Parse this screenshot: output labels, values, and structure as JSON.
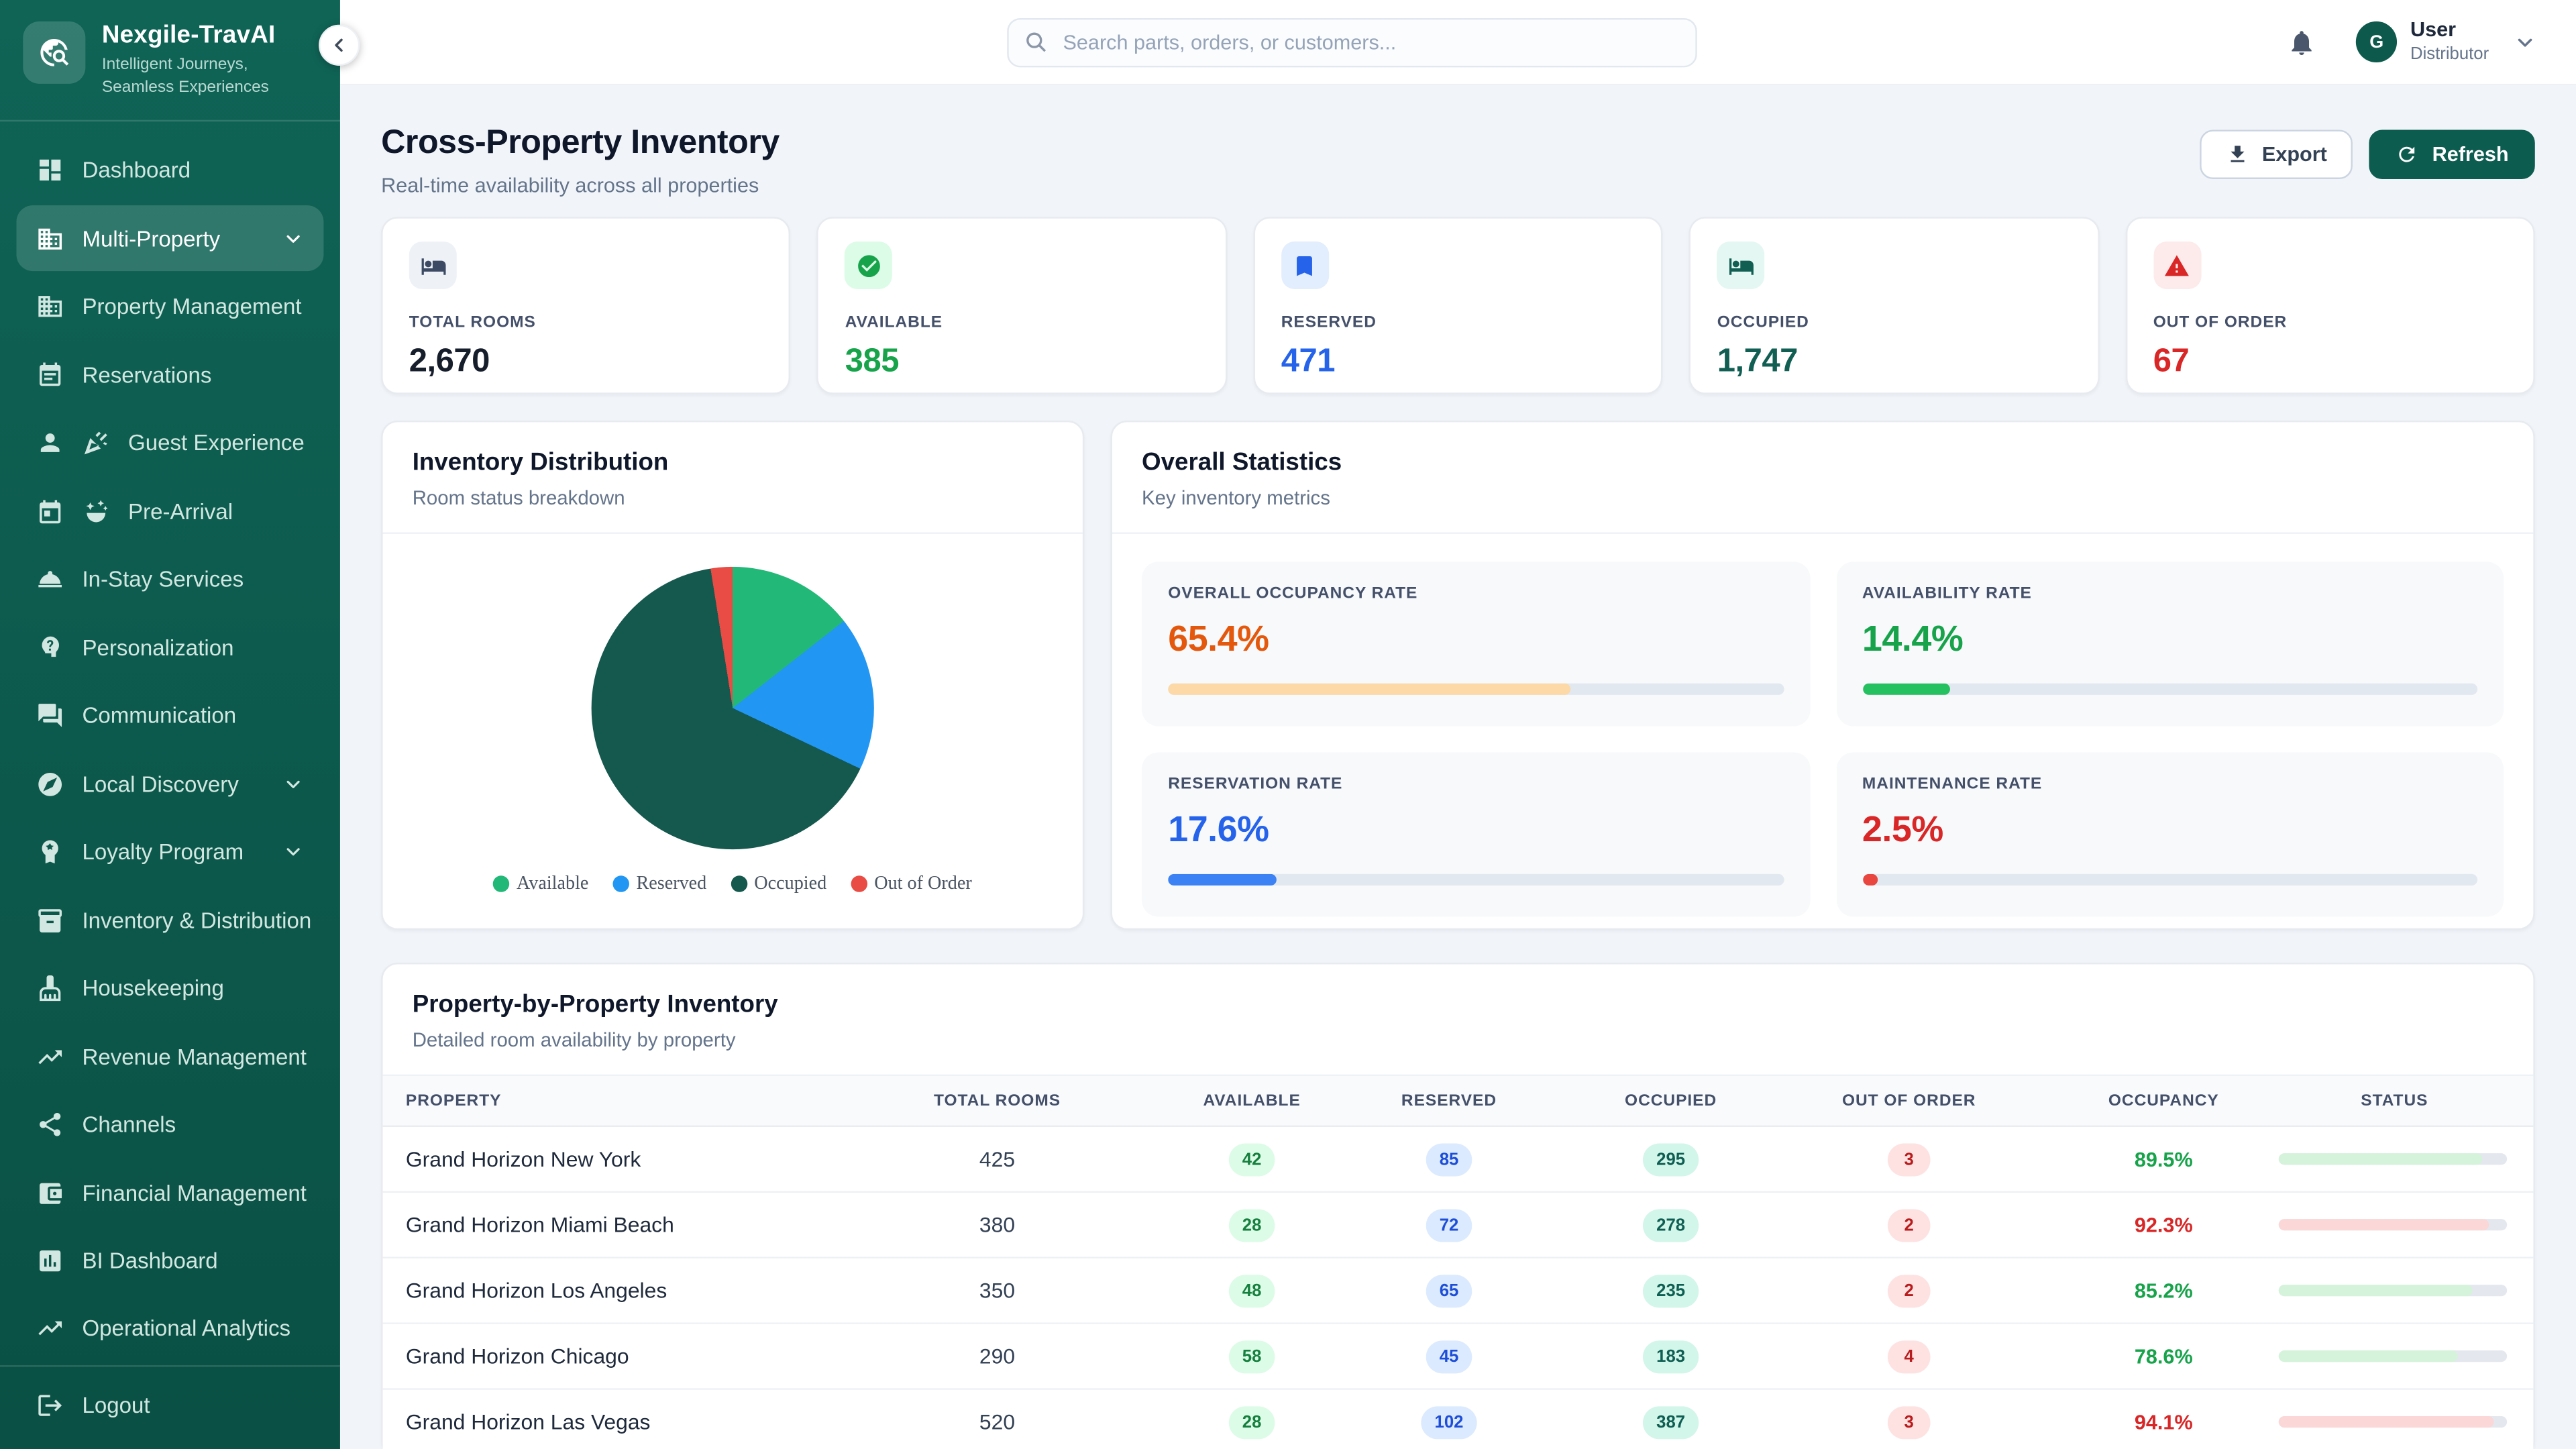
{
  "brand": {
    "name": "Nexgile-TravAI",
    "tagline": "Intelligent Journeys, Seamless Experiences"
  },
  "sidebar": {
    "items": [
      {
        "label": "Dashboard",
        "icon": "dashboard-grid-icon"
      },
      {
        "label": "Multi-Property",
        "icon": "building-icon",
        "active": true,
        "chevron": "down"
      },
      {
        "label": "Property Management",
        "icon": "building-icon"
      },
      {
        "label": "Reservations",
        "icon": "calendar-icon"
      },
      {
        "label": "Guest Experience",
        "icon": "person-icon",
        "extra_icon": "party-popper-icon"
      },
      {
        "label": "Pre-Arrival",
        "icon": "calendar-event-icon",
        "extra_icon": "confetti-icon"
      },
      {
        "label": "In-Stay Services",
        "icon": "room-service-icon"
      },
      {
        "label": "Personalization",
        "icon": "psychology-head-icon"
      },
      {
        "label": "Communication",
        "icon": "chat-icon"
      },
      {
        "label": "Local Discovery",
        "icon": "compass-icon",
        "chevron": "down"
      },
      {
        "label": "Loyalty Program",
        "icon": "loyalty-badge-icon",
        "chevron": "down"
      },
      {
        "label": "Inventory & Distribution",
        "icon": "inventory-box-icon"
      },
      {
        "label": "Housekeeping",
        "icon": "cleaning-icon"
      },
      {
        "label": "Revenue Management",
        "icon": "trending-up-icon"
      },
      {
        "label": "Channels",
        "icon": "share-icon"
      },
      {
        "label": "Financial Management",
        "icon": "wallet-icon",
        "chevron": "down"
      },
      {
        "label": "BI Dashboard",
        "icon": "bar-chart-icon"
      },
      {
        "label": "Operational Analytics",
        "icon": "trending-up-icon"
      }
    ],
    "logout_label": "Logout"
  },
  "header": {
    "search_placeholder": "Search parts, orders, or customers...",
    "user": {
      "initial": "G",
      "name": "User",
      "role": "Distributor"
    }
  },
  "page": {
    "title": "Cross-Property Inventory",
    "subtitle": "Real-time availability across all properties",
    "export_label": "Export",
    "refresh_label": "Refresh",
    "accent_color": "#0d5c50"
  },
  "stats": [
    {
      "label": "TOTAL ROOMS",
      "value": "2,670",
      "icon": "bed-icon",
      "color": "#161d2b",
      "icon_bg": "#eef2f7",
      "icon_color": "#3c4a63"
    },
    {
      "label": "AVAILABLE",
      "value": "385",
      "icon": "check-circle-icon",
      "color": "#16a34a",
      "icon_bg": "#dcfce7",
      "icon_color": "#16a34a"
    },
    {
      "label": "RESERVED",
      "value": "471",
      "icon": "bookmark-icon",
      "color": "#2563eb",
      "icon_bg": "#e2edfd",
      "icon_color": "#2563eb"
    },
    {
      "label": "OCCUPIED",
      "value": "1,747",
      "icon": "bed-icon",
      "color": "#115e53",
      "icon_bg": "#e4f7f2",
      "icon_color": "#115e53"
    },
    {
      "label": "OUT OF ORDER",
      "value": "67",
      "icon": "warning-triangle-icon",
      "color": "#d92626",
      "icon_bg": "#fdeaea",
      "icon_color": "#d92626"
    }
  ],
  "distribution": {
    "title": "Inventory Distribution",
    "subtitle": "Room status breakdown"
  },
  "chart_data": {
    "type": "pie",
    "title": "Inventory Distribution",
    "labels": [
      "Available",
      "Reserved",
      "Occupied",
      "Out of Order"
    ],
    "values": [
      385,
      471,
      1747,
      67
    ],
    "percentages": [
      14.4,
      17.6,
      65.4,
      2.5
    ],
    "colors": [
      "#22b877",
      "#2196f3",
      "#15584e",
      "#e84c44"
    ],
    "legend_position": "bottom",
    "start_angle_deg": 0,
    "direction": "clockwise"
  },
  "overall": {
    "title": "Overall Statistics",
    "subtitle": "Key inventory metrics",
    "metrics": [
      {
        "label": "OVERALL OCCUPANCY RATE",
        "value": "65.4%",
        "pct": 65.4,
        "value_color": "#e4580d",
        "bar_color": "#fcd9a6"
      },
      {
        "label": "AVAILABILITY RATE",
        "value": "14.4%",
        "pct": 14.4,
        "value_color": "#16a34a",
        "bar_color": "#25c05f"
      },
      {
        "label": "RESERVATION RATE",
        "value": "17.6%",
        "pct": 17.6,
        "value_color": "#2563eb",
        "bar_color": "#3d82f4"
      },
      {
        "label": "MAINTENANCE RATE",
        "value": "2.5%",
        "pct": 2.5,
        "value_color": "#d92626",
        "bar_color": "#e8463f"
      }
    ]
  },
  "table": {
    "title": "Property-by-Property Inventory",
    "subtitle": "Detailed room availability by property",
    "columns": [
      "PROPERTY",
      "TOTAL ROOMS",
      "AVAILABLE",
      "RESERVED",
      "OCCUPIED",
      "OUT OF ORDER",
      "OCCUPANCY",
      "STATUS"
    ],
    "rows": [
      {
        "property": "Grand Horizon New York",
        "total": "425",
        "available": "42",
        "reserved": "85",
        "occupied": "295",
        "out_of_order": "3",
        "occupancy": "89.5%",
        "pct": 89.5,
        "occupancy_color": "#16a34a",
        "bar_color": "#d5f3da"
      },
      {
        "property": "Grand Horizon Miami Beach",
        "total": "380",
        "available": "28",
        "reserved": "72",
        "occupied": "278",
        "out_of_order": "2",
        "occupancy": "92.3%",
        "pct": 92.3,
        "occupancy_color": "#d92626",
        "bar_color": "#fbd7d7"
      },
      {
        "property": "Grand Horizon Los Angeles",
        "total": "350",
        "available": "48",
        "reserved": "65",
        "occupied": "235",
        "out_of_order": "2",
        "occupancy": "85.2%",
        "pct": 85.2,
        "occupancy_color": "#16a34a",
        "bar_color": "#d5f3da"
      },
      {
        "property": "Grand Horizon Chicago",
        "total": "290",
        "available": "58",
        "reserved": "45",
        "occupied": "183",
        "out_of_order": "4",
        "occupancy": "78.6%",
        "pct": 78.6,
        "occupancy_color": "#16a34a",
        "bar_color": "#d5f3da"
      },
      {
        "property": "Grand Horizon Las Vegas",
        "total": "520",
        "available": "28",
        "reserved": "102",
        "occupied": "387",
        "out_of_order": "3",
        "occupancy": "94.1%",
        "pct": 94.1,
        "occupancy_color": "#d92626",
        "bar_color": "#fbd7d7"
      }
    ]
  }
}
